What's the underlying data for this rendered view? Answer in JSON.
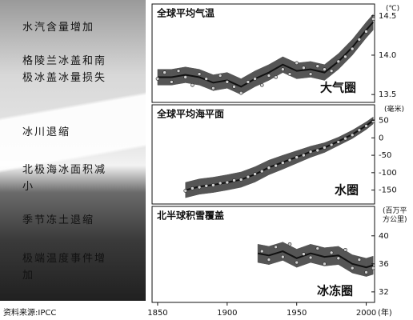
{
  "sidebar": {
    "labels": [
      "水汽含量增加",
      "格陵兰冰盖和南极冰盖冰量损失",
      "冰川退缩",
      "北极海冰面积减小",
      "季节冻土退缩",
      "极端温度事件增加"
    ],
    "source": "资料来源:IPCC"
  },
  "chart_data": [
    {
      "type": "line",
      "title": "全球平均气温",
      "annotation": "大气圈",
      "y_unit": "(℃)",
      "xlim": [
        1846,
        2006
      ],
      "ylim": [
        13.4,
        14.65
      ],
      "yticks": [
        {
          "value": 13.5,
          "label": "13.5"
        },
        {
          "value": 14,
          "label": "14.0"
        },
        {
          "value": 14.5,
          "label": "14.5"
        }
      ],
      "band_color": "#555555",
      "line_color": "#111111",
      "point_color": "#d0d0d0",
      "x": [
        1850,
        1860,
        1870,
        1880,
        1890,
        1900,
        1910,
        1920,
        1930,
        1940,
        1950,
        1960,
        1970,
        1980,
        1990,
        2000,
        2005
      ],
      "values": [
        13.72,
        13.72,
        13.75,
        13.72,
        13.65,
        13.68,
        13.6,
        13.7,
        13.78,
        13.88,
        13.8,
        13.82,
        13.78,
        13.92,
        14.1,
        14.32,
        14.42
      ],
      "lower": [
        13.62,
        13.62,
        13.65,
        13.62,
        13.55,
        13.58,
        13.5,
        13.6,
        13.68,
        13.78,
        13.7,
        13.72,
        13.68,
        13.82,
        14.0,
        14.22,
        14.32
      ],
      "upper": [
        13.82,
        13.82,
        13.85,
        13.82,
        13.75,
        13.78,
        13.7,
        13.8,
        13.88,
        13.98,
        13.9,
        13.92,
        13.88,
        14.02,
        14.2,
        14.42,
        14.52
      ],
      "points_x": [
        1850,
        1855,
        1860,
        1865,
        1870,
        1875,
        1880,
        1885,
        1890,
        1895,
        1900,
        1905,
        1910,
        1915,
        1920,
        1925,
        1930,
        1935,
        1940,
        1945,
        1950,
        1955,
        1960,
        1965,
        1970,
        1975,
        1980,
        1985,
        1990,
        1995,
        2000,
        2005
      ],
      "points": [
        13.7,
        13.78,
        13.66,
        13.8,
        13.72,
        13.62,
        13.76,
        13.7,
        13.58,
        13.74,
        13.66,
        13.6,
        13.52,
        13.66,
        13.7,
        13.62,
        13.74,
        13.72,
        13.82,
        13.76,
        13.9,
        13.84,
        13.76,
        13.86,
        13.82,
        13.8,
        13.92,
        13.98,
        14.08,
        14.2,
        14.3,
        14.46
      ]
    },
    {
      "type": "line",
      "title": "全球平均海平面",
      "annotation": "水圈",
      "y_unit": "(毫米)",
      "xlim": [
        1846,
        2006
      ],
      "ylim": [
        -190,
        95
      ],
      "yticks": [
        -150,
        -100,
        -50,
        0,
        50
      ],
      "band_color": "#555555",
      "line_color": "#111111",
      "point_color": "#d0d0d0",
      "x": [
        1870,
        1880,
        1890,
        1900,
        1910,
        1920,
        1930,
        1940,
        1950,
        1960,
        1970,
        1980,
        1990,
        2000,
        2005
      ],
      "values": [
        -150,
        -140,
        -135,
        -128,
        -120,
        -105,
        -85,
        -70,
        -55,
        -40,
        -28,
        -10,
        10,
        35,
        50
      ],
      "lower": [
        -172,
        -162,
        -157,
        -150,
        -142,
        -127,
        -106,
        -90,
        -73,
        -56,
        -42,
        -22,
        -2,
        24,
        40
      ],
      "upper": [
        -128,
        -118,
        -113,
        -106,
        -98,
        -83,
        -64,
        -50,
        -37,
        -24,
        -14,
        2,
        22,
        46,
        60
      ],
      "points_x": [
        1870,
        1875,
        1880,
        1885,
        1890,
        1895,
        1900,
        1905,
        1910,
        1915,
        1920,
        1925,
        1930,
        1935,
        1940,
        1945,
        1950,
        1955,
        1960,
        1965,
        1970,
        1975,
        1980,
        1985,
        1990,
        1995,
        2000,
        2005
      ],
      "points": [
        -152,
        -145,
        -142,
        -138,
        -136,
        -130,
        -128,
        -122,
        -120,
        -112,
        -104,
        -96,
        -86,
        -80,
        -72,
        -64,
        -56,
        -50,
        -40,
        -36,
        -28,
        -20,
        -12,
        -2,
        8,
        22,
        34,
        48
      ]
    },
    {
      "type": "line",
      "title": "北半球积雪覆盖",
      "annotation": "冰冻圈",
      "y_unit": "(百万平方公里)",
      "x_unit": "(年)",
      "xlim": [
        1846,
        2006
      ],
      "ylim": [
        30.5,
        44.2
      ],
      "yticks": [
        32,
        36,
        40
      ],
      "xticks": [
        1850,
        1900,
        1950,
        2000
      ],
      "band_color": "#555555",
      "line_color": "#111111",
      "point_color": "#d0d0d0",
      "x": [
        1922,
        1930,
        1940,
        1950,
        1960,
        1970,
        1980,
        1990,
        2000,
        2005
      ],
      "values": [
        37.5,
        37.2,
        37.8,
        36.8,
        37.5,
        37.0,
        37.2,
        36.0,
        35.5,
        35.8
      ],
      "lower": [
        36.2,
        35.9,
        36.5,
        35.5,
        36.2,
        35.7,
        35.9,
        34.7,
        34.2,
        34.5
      ],
      "upper": [
        38.8,
        38.5,
        39.1,
        38.1,
        38.8,
        38.3,
        38.5,
        37.3,
        36.8,
        37.1
      ],
      "points_x": [
        1925,
        1930,
        1935,
        1940,
        1945,
        1950,
        1955,
        1960,
        1965,
        1970,
        1975,
        1980,
        1985,
        1990,
        1995,
        2000,
        2005
      ],
      "points": [
        37.8,
        36.6,
        38.4,
        37.0,
        38.8,
        36.2,
        37.4,
        36.9,
        38.2,
        36.0,
        37.6,
        36.8,
        38.0,
        35.4,
        36.6,
        34.8,
        35.4
      ]
    }
  ]
}
